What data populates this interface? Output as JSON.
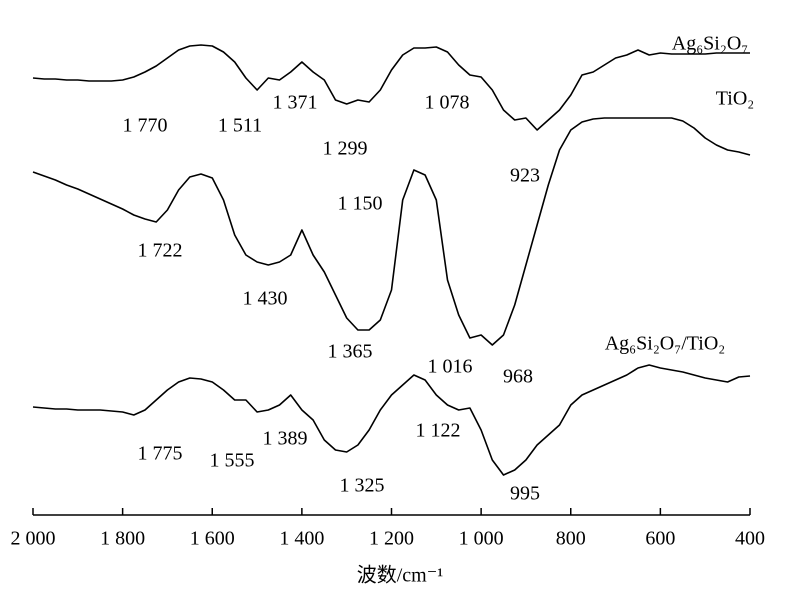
{
  "chart_data": {
    "type": "line",
    "xlabel": "波数/cm⁻¹",
    "x": [
      2000,
      1975,
      1950,
      1925,
      1900,
      1875,
      1850,
      1825,
      1800,
      1775,
      1750,
      1725,
      1700,
      1675,
      1650,
      1625,
      1600,
      1575,
      1550,
      1525,
      1500,
      1475,
      1450,
      1425,
      1400,
      1375,
      1350,
      1325,
      1300,
      1275,
      1250,
      1225,
      1200,
      1175,
      1150,
      1125,
      1100,
      1075,
      1050,
      1025,
      1000,
      975,
      950,
      925,
      900,
      875,
      850,
      825,
      800,
      775,
      750,
      725,
      700,
      675,
      650,
      625,
      600,
      575,
      550,
      525,
      500,
      475,
      450,
      425,
      400
    ],
    "xlim": [
      2000,
      400
    ],
    "xticks": [
      {
        "value": 2000,
        "label": "2 000"
      },
      {
        "value": 1800,
        "label": "1 800"
      },
      {
        "value": 1600,
        "label": "1 600"
      },
      {
        "value": 1400,
        "label": "1 400"
      },
      {
        "value": 1200,
        "label": "1 200"
      },
      {
        "value": 1000,
        "label": "1 000"
      },
      800,
      600,
      400
    ],
    "ylim": [
      0,
      500
    ],
    "color": "#000000",
    "series": [
      {
        "name": "Ag₆Si₂O₇",
        "values": [
          437,
          436,
          436,
          435,
          435,
          434,
          434,
          434,
          435,
          438,
          443,
          449,
          457,
          465,
          469,
          470,
          469,
          463,
          453,
          437,
          425,
          437,
          435,
          443,
          453,
          443,
          435,
          415,
          411,
          415,
          413,
          425,
          445,
          460,
          467,
          467,
          468,
          463,
          450,
          440,
          438,
          425,
          405,
          395,
          397,
          385,
          395,
          405,
          420,
          440,
          443,
          450,
          457,
          460,
          465,
          460,
          462,
          461,
          461,
          461,
          461,
          462,
          462,
          462,
          462
        ]
      },
      {
        "name": "TiO₂",
        "values": [
          343,
          339,
          335,
          330,
          326,
          321,
          316,
          311,
          306,
          300,
          296,
          293,
          305,
          325,
          338,
          341,
          337,
          315,
          280,
          260,
          253,
          250,
          253,
          260,
          285,
          260,
          243,
          220,
          197,
          185,
          185,
          195,
          225,
          315,
          345,
          340,
          315,
          235,
          200,
          177,
          180,
          170,
          180,
          210,
          250,
          290,
          330,
          365,
          385,
          393,
          396,
          397,
          397,
          397,
          397,
          397,
          397,
          397,
          394,
          387,
          377,
          370,
          365,
          363,
          360
        ]
      },
      {
        "name": "Ag₆Si₂O₇/TiO₂",
        "values": [
          108,
          107,
          106,
          106,
          105,
          105,
          105,
          104,
          103,
          100,
          105,
          115,
          125,
          133,
          137,
          136,
          133,
          125,
          115,
          115,
          103,
          105,
          110,
          120,
          105,
          95,
          75,
          65,
          63,
          70,
          85,
          105,
          120,
          130,
          140,
          135,
          120,
          110,
          105,
          107,
          85,
          55,
          40,
          45,
          55,
          70,
          80,
          90,
          110,
          120,
          125,
          130,
          135,
          140,
          147,
          150,
          147,
          145,
          143,
          140,
          137,
          135,
          133,
          138,
          139
        ]
      }
    ],
    "annotations": [
      "1 770",
      "1 511",
      "1 371",
      "1 299",
      "1 078",
      "923",
      "1 722",
      "1 430",
      "1 365",
      "1 150",
      "1 016",
      "968",
      "1 775",
      "1 555",
      "1 389",
      "1 325",
      "1 122",
      "995"
    ]
  }
}
